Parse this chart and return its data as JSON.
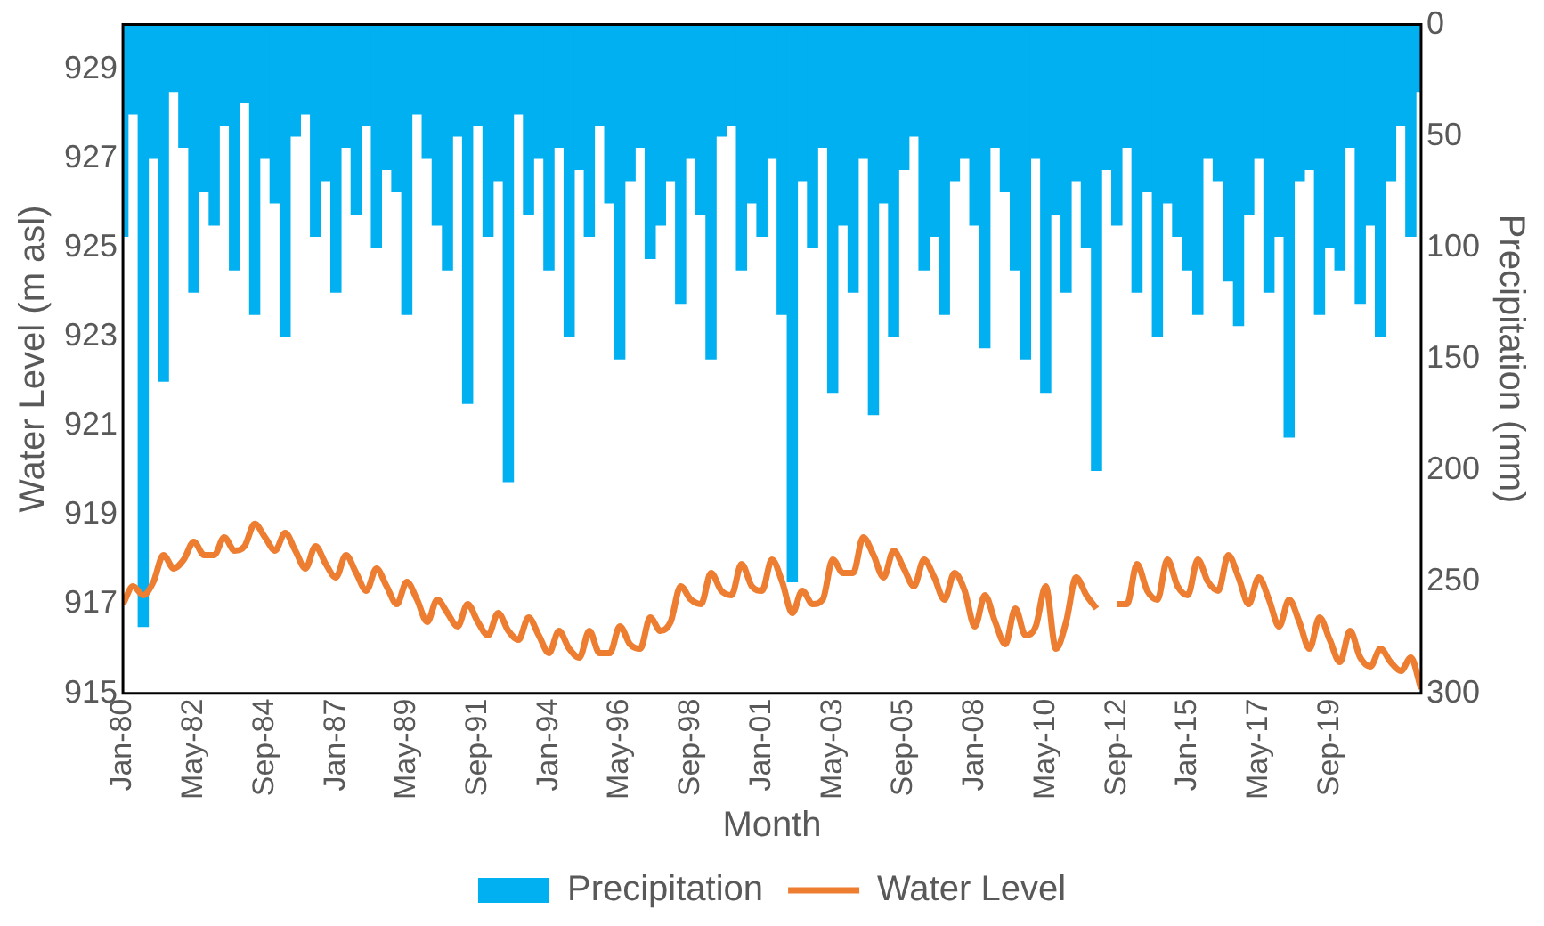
{
  "chart_data": {
    "type": "line",
    "xlabel": "Month",
    "ylabel": "Water Level (m asl)",
    "y2label": "Precipitation (mm)",
    "legend": "bottom",
    "grid": false,
    "x": [
      "1980-01",
      "1980-05",
      "1980-09",
      "1981-01",
      "1981-05",
      "1981-09",
      "1982-01",
      "1982-05",
      "1982-09",
      "1983-01",
      "1983-05",
      "1983-09",
      "1984-01",
      "1984-05",
      "1984-09",
      "1985-01",
      "1985-05",
      "1985-09",
      "1986-01",
      "1986-05",
      "1986-09",
      "1987-01",
      "1987-05",
      "1987-09",
      "1988-01",
      "1988-05",
      "1988-09",
      "1989-01",
      "1989-05",
      "1989-09",
      "1990-01",
      "1990-05",
      "1990-09",
      "1991-01",
      "1991-05",
      "1991-09",
      "1992-01",
      "1992-05",
      "1992-09",
      "1993-01",
      "1993-05",
      "1993-09",
      "1994-01",
      "1994-05",
      "1994-09",
      "1995-01",
      "1995-05",
      "1995-09",
      "1996-01",
      "1996-05",
      "1996-09",
      "1997-01",
      "1997-05",
      "1997-09",
      "1998-01",
      "1998-05",
      "1998-09",
      "1999-01",
      "1999-05",
      "1999-09",
      "2000-01",
      "2000-05",
      "2000-09",
      "2001-01",
      "2001-05",
      "2001-09",
      "2002-01",
      "2002-05",
      "2002-09",
      "2003-01",
      "2003-05",
      "2003-09",
      "2004-01",
      "2004-05",
      "2004-09",
      "2005-01",
      "2005-05",
      "2005-09",
      "2006-01",
      "2006-05",
      "2006-09",
      "2007-01",
      "2007-05",
      "2007-09",
      "2008-01",
      "2008-05",
      "2008-09",
      "2009-01",
      "2009-05",
      "2009-09",
      "2010-01",
      "2010-05",
      "2010-09",
      "2011-01",
      "2011-05",
      "2011-09",
      "2012-01",
      "2012-05",
      "2012-09",
      "2013-01",
      "2013-05",
      "2013-09",
      "2014-01",
      "2014-05",
      "2014-09",
      "2015-01",
      "2015-05",
      "2015-09",
      "2016-01",
      "2016-05",
      "2016-09",
      "2017-01",
      "2017-05",
      "2017-09",
      "2018-01",
      "2018-05",
      "2018-09",
      "2019-01",
      "2019-05",
      "2019-09",
      "2020-01",
      "2020-05",
      "2020-09",
      "2021-01",
      "2021-05",
      "2021-09",
      "2022-01",
      "2022-05",
      "2022-09"
    ],
    "xlim": [
      "1980-01",
      "2022-09"
    ],
    "xticks": [
      {
        "value": "1980-01",
        "label": "Jan-80"
      },
      {
        "value": "1982-05",
        "label": "May-82"
      },
      {
        "value": "1984-09",
        "label": "Sep-84"
      },
      {
        "value": "1987-01",
        "label": "Jan-87"
      },
      {
        "value": "1989-05",
        "label": "May-89"
      },
      {
        "value": "1991-09",
        "label": "Sep-91"
      },
      {
        "value": "1994-01",
        "label": "Jan-94"
      },
      {
        "value": "1996-05",
        "label": "May-96"
      },
      {
        "value": "1998-09",
        "label": "Sep-98"
      },
      {
        "value": "2001-01",
        "label": "Jan-01"
      },
      {
        "value": "2003-05",
        "label": "May-03"
      },
      {
        "value": "2005-09",
        "label": "Sep-05"
      },
      {
        "value": "2008-01",
        "label": "Jan-08"
      },
      {
        "value": "2010-05",
        "label": "May-10"
      },
      {
        "value": "2012-09",
        "label": "Sep-12"
      },
      {
        "value": "2015-01",
        "label": "Jan-15"
      },
      {
        "value": "2017-05",
        "label": "May-17"
      },
      {
        "value": "2019-09",
        "label": "Sep-19"
      }
    ],
    "ylim": [
      915,
      930
    ],
    "yticks": [
      915,
      917,
      919,
      921,
      923,
      925,
      927,
      929
    ],
    "y2lim": [
      300,
      0
    ],
    "y2ticks": [
      0,
      50,
      100,
      150,
      200,
      250,
      300
    ],
    "series": [
      {
        "name": "Precipitation",
        "type": "bar",
        "axis": "y2",
        "color": "#00b0f0",
        "values": [
          95,
          40,
          270,
          60,
          160,
          30,
          55,
          120,
          75,
          90,
          45,
          110,
          35,
          130,
          60,
          80,
          140,
          50,
          40,
          95,
          70,
          120,
          55,
          85,
          45,
          100,
          65,
          75,
          130,
          40,
          60,
          90,
          110,
          50,
          170,
          45,
          95,
          70,
          205,
          40,
          85,
          60,
          110,
          55,
          140,
          65,
          95,
          45,
          80,
          150,
          70,
          55,
          105,
          90,
          70,
          125,
          60,
          85,
          150,
          50,
          45,
          110,
          80,
          95,
          60,
          130,
          250,
          70,
          100,
          55,
          165,
          90,
          120,
          60,
          175,
          80,
          140,
          65,
          50,
          110,
          95,
          130,
          70,
          60,
          90,
          145,
          55,
          75,
          110,
          150,
          60,
          165,
          85,
          120,
          70,
          100,
          200,
          65,
          90,
          55,
          120,
          75,
          140,
          80,
          95,
          110,
          130,
          60,
          70,
          115,
          135,
          85,
          60,
          120,
          95,
          185,
          70,
          65,
          130,
          100,
          110,
          55,
          125,
          90,
          140,
          70,
          45,
          95,
          30
        ]
      },
      {
        "name": "Water Level",
        "color": "#ed7d31",
        "values": [
          917.0,
          917.4,
          917.2,
          917.5,
          918.1,
          917.8,
          918.0,
          918.4,
          918.1,
          918.1,
          918.5,
          918.2,
          918.3,
          918.8,
          918.5,
          918.2,
          918.6,
          918.2,
          917.8,
          918.3,
          917.9,
          917.6,
          918.1,
          917.7,
          917.3,
          917.8,
          917.4,
          917.0,
          917.5,
          917.1,
          916.6,
          917.1,
          916.8,
          916.5,
          917.0,
          916.6,
          916.3,
          916.8,
          916.4,
          916.2,
          916.7,
          916.3,
          915.9,
          916.4,
          916.0,
          915.8,
          916.4,
          915.9,
          915.9,
          916.5,
          916.1,
          916.0,
          916.7,
          916.4,
          916.6,
          917.4,
          917.1,
          917.0,
          917.7,
          917.3,
          917.2,
          917.9,
          917.4,
          917.3,
          918.0,
          917.5,
          916.8,
          917.3,
          917.0,
          917.1,
          918.0,
          917.7,
          917.7,
          918.5,
          918.1,
          917.6,
          918.2,
          917.8,
          917.4,
          918.0,
          917.6,
          917.1,
          917.7,
          917.3,
          916.5,
          917.2,
          916.6,
          916.1,
          916.9,
          916.3,
          916.5,
          917.4,
          916.0,
          916.6,
          917.6,
          917.2,
          916.9,
          null,
          917.0,
          917.0,
          917.9,
          917.3,
          917.1,
          918.0,
          917.4,
          917.2,
          918.0,
          917.5,
          917.3,
          918.1,
          917.6,
          917.0,
          917.6,
          917.1,
          916.5,
          917.1,
          916.6,
          916.0,
          916.7,
          916.2,
          915.7,
          916.4,
          915.8,
          915.6,
          916.0,
          915.7,
          915.5,
          915.8,
          915.1
        ]
      }
    ]
  }
}
